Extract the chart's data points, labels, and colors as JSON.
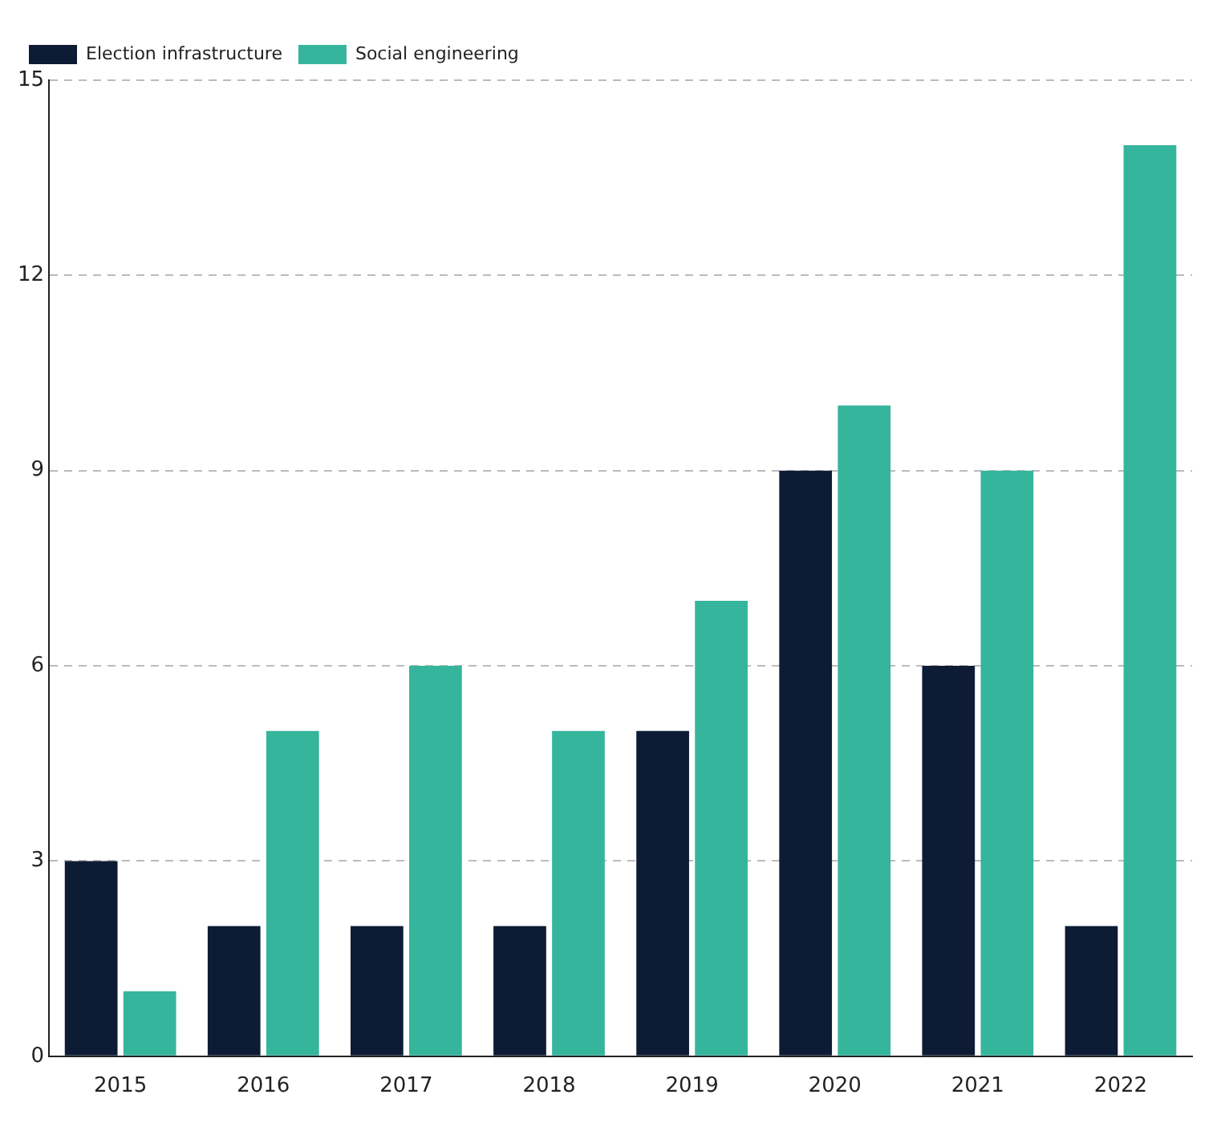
{
  "chart_data": {
    "type": "bar",
    "categories": [
      "2015",
      "2016",
      "2017",
      "2018",
      "2019",
      "2020",
      "2021",
      "2022"
    ],
    "series": [
      {
        "name": "Election infrastructure",
        "color": "#0d1b35",
        "values": [
          3,
          2,
          2,
          2,
          5,
          9,
          6,
          2
        ]
      },
      {
        "name": "Social engineering",
        "color": "#35b59c",
        "values": [
          1,
          5,
          6,
          5,
          7,
          10,
          9,
          14
        ]
      }
    ],
    "ylim": [
      0,
      15
    ],
    "yticks": [
      0,
      3,
      6,
      9,
      12,
      15
    ],
    "grid": "y",
    "legend": "top left"
  }
}
